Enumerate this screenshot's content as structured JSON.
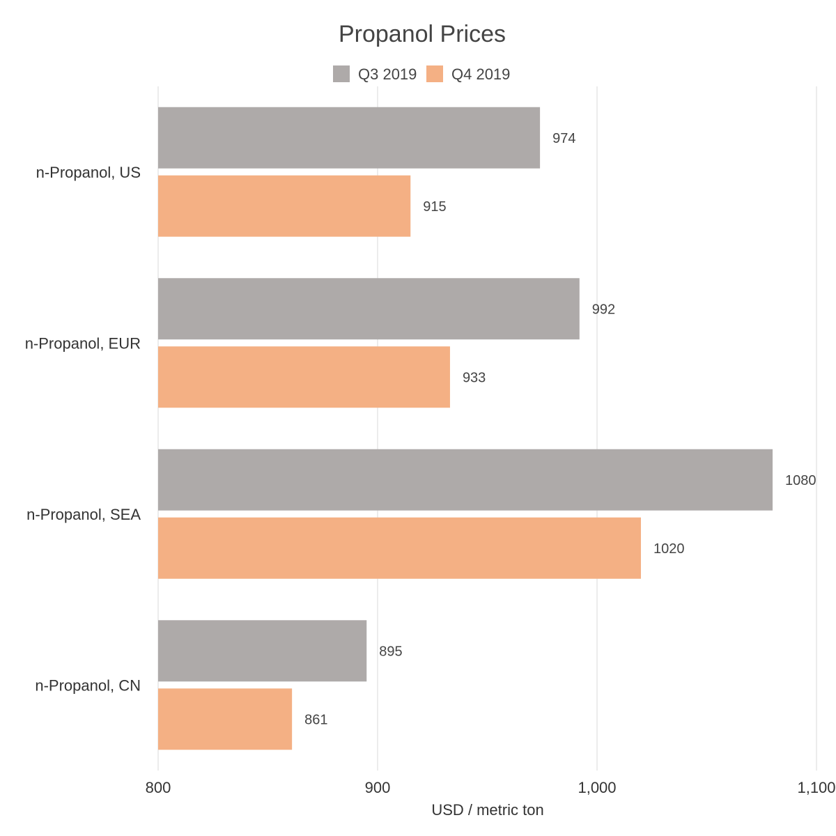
{
  "chart_data": {
    "type": "bar",
    "orientation": "horizontal",
    "title": "Propanol Prices",
    "xlabel": "USD / metric ton",
    "ylabel": "",
    "categories": [
      "n-Propanol, US",
      "n-Propanol, EUR",
      "n-Propanol, SEA",
      "n-Propanol, CN"
    ],
    "series": [
      {
        "name": "Q3 2019",
        "color": "#aeaaa9",
        "values": [
          974,
          992,
          1080,
          895
        ]
      },
      {
        "name": "Q4 2019",
        "color": "#f4b084",
        "values": [
          915,
          933,
          1020,
          861
        ]
      }
    ],
    "value_labels": [
      [
        "974",
        "992",
        "1080",
        "895"
      ],
      [
        "915",
        "933",
        "1020",
        "861"
      ]
    ],
    "xlim": [
      800,
      1100
    ],
    "x_ticks": [
      800,
      900,
      1000,
      1100
    ],
    "x_tick_labels": [
      "800",
      "900",
      "1,000",
      "1,100"
    ],
    "grid": true,
    "legend_position": "top"
  }
}
